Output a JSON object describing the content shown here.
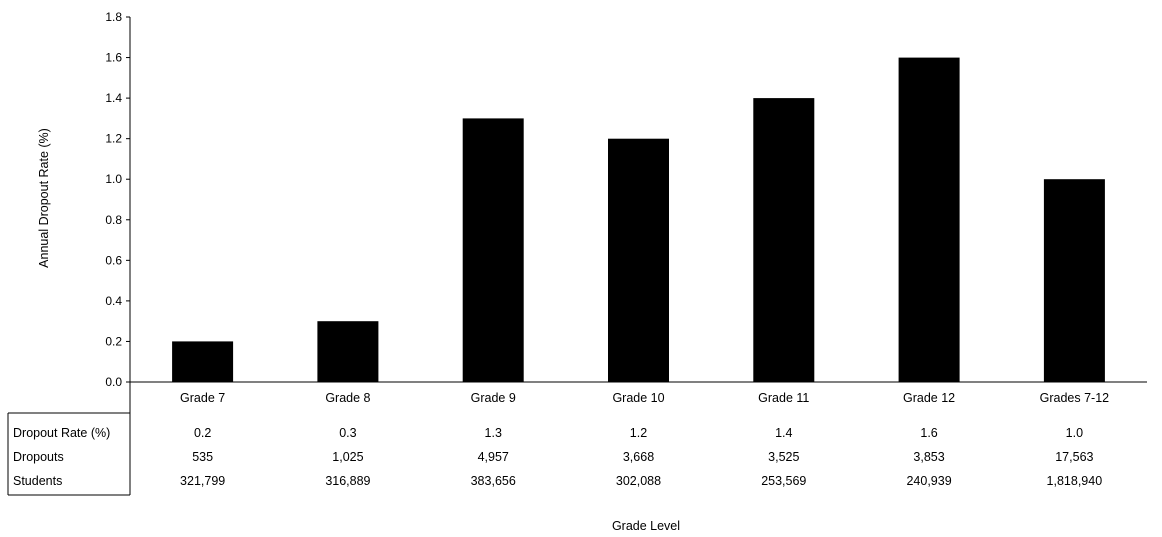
{
  "chart_data": {
    "type": "bar",
    "categories": [
      "Grade 7",
      "Grade 8",
      "Grade 9",
      "Grade 10",
      "Grade 11",
      "Grade 12",
      "Grades 7-12"
    ],
    "values": [
      0.2,
      0.3,
      1.3,
      1.2,
      1.4,
      1.6,
      1.0
    ],
    "ylabel": "Annual Dropout Rate (%)",
    "xlabel": "Grade Level",
    "ylim": [
      0,
      1.8
    ],
    "yticks": [
      "0.0",
      "0.2",
      "0.4",
      "0.6",
      "0.8",
      "1.0",
      "1.2",
      "1.4",
      "1.6",
      "1.8"
    ],
    "bar_color": "#000000",
    "grid": false,
    "legend": "none",
    "data_table": {
      "rows": [
        {
          "label": "Dropout Rate (%)",
          "values": [
            "0.2",
            "0.3",
            "1.3",
            "1.2",
            "1.4",
            "1.6",
            "1.0"
          ]
        },
        {
          "label": "Dropouts",
          "values": [
            "535",
            "1,025",
            "4,957",
            "3,668",
            "3,525",
            "3,853",
            "17,563"
          ]
        },
        {
          "label": "Students",
          "values": [
            "321,799",
            "316,889",
            "383,656",
            "302,088",
            "253,569",
            "240,939",
            "1,818,940"
          ]
        }
      ]
    }
  }
}
